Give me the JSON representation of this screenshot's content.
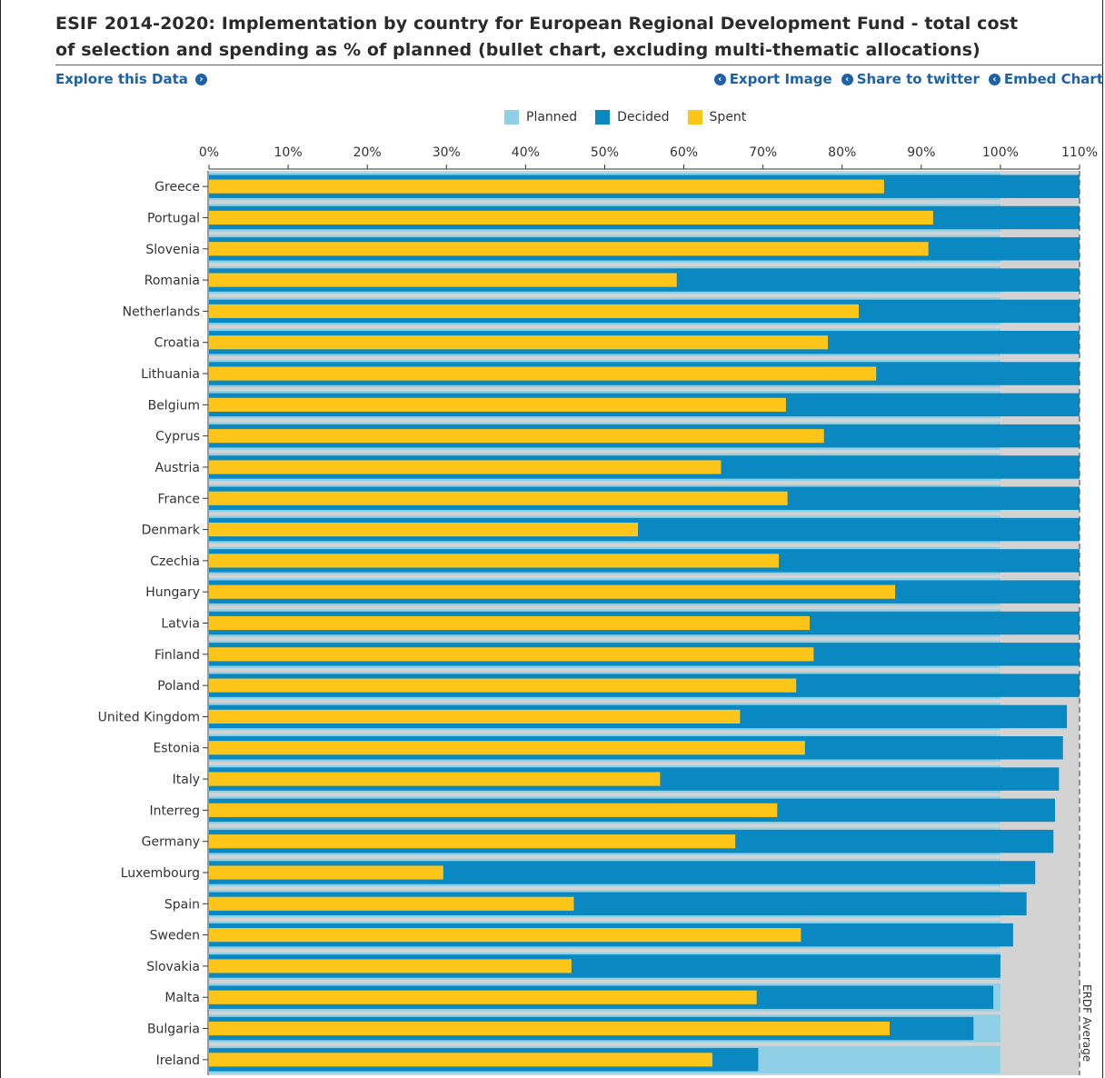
{
  "title": "ESIF 2014-2020: Implementation by country for European Regional Development Fund - total cost\nof selection and spending as % of planned (bullet chart, excluding multi-thematic allocations)",
  "links": {
    "explore": "Explore this Data",
    "export": "Export Image",
    "share": "Share to twitter",
    "embed": "Embed Chart"
  },
  "icons": {
    "explore": "chevron-right-circle-icon",
    "actions": "chevron-left-circle-icon"
  },
  "colors": {
    "planned": "#8fd0e6",
    "decided": "#0a88c2",
    "spent": "#ffc519",
    "background_band": "#d3d3d3",
    "link": "#1d61a8"
  },
  "chart_data": {
    "type": "bar",
    "orientation": "horizontal",
    "legend": [
      "Planned",
      "Decided",
      "Spent"
    ],
    "legend_position": "top",
    "x_ticks": [
      "0%",
      "10%",
      "20%",
      "30%",
      "40%",
      "50%",
      "60%",
      "70%",
      "80%",
      "90%",
      "100%",
      "110%"
    ],
    "xlim": [
      0,
      110
    ],
    "reference_line": {
      "label": "ERDF Average",
      "value": 110
    },
    "categories": [
      "Greece",
      "Portugal",
      "Slovenia",
      "Romania",
      "Netherlands",
      "Croatia",
      "Lithuania",
      "Belgium",
      "Cyprus",
      "Austria",
      "France",
      "Denmark",
      "Czechia",
      "Hungary",
      "Latvia",
      "Finland",
      "Poland",
      "United Kingdom",
      "Estonia",
      "Italy",
      "Interreg",
      "Germany",
      "Luxembourg",
      "Spain",
      "Sweden",
      "Slovakia",
      "Malta",
      "Bulgaria",
      "Ireland"
    ],
    "series": [
      {
        "name": "Planned",
        "values": [
          100,
          100,
          100,
          100,
          100,
          100,
          100,
          100,
          100,
          100,
          100,
          100,
          100,
          100,
          100,
          100,
          100,
          100,
          100,
          100,
          100,
          100,
          100,
          100,
          100,
          100,
          100,
          100,
          100
        ]
      },
      {
        "name": "Decided",
        "values": [
          110,
          110,
          110,
          110,
          110,
          110,
          110,
          110,
          110,
          110,
          110,
          110,
          110,
          110,
          110,
          110,
          110,
          108.4,
          107.9,
          107.4,
          106.9,
          106.7,
          104.4,
          103.3,
          101.6,
          100,
          99.1,
          96.6,
          69.4
        ]
      },
      {
        "name": "Spent",
        "values": [
          85.3,
          91.5,
          90.9,
          59.1,
          82.1,
          78.2,
          84.3,
          72.9,
          77.7,
          64.7,
          73.1,
          54.2,
          72.0,
          86.7,
          75.9,
          76.4,
          74.2,
          67.1,
          75.3,
          57.0,
          71.8,
          66.5,
          29.6,
          46.1,
          74.8,
          45.8,
          69.2,
          86.0,
          63.6
        ]
      }
    ]
  }
}
